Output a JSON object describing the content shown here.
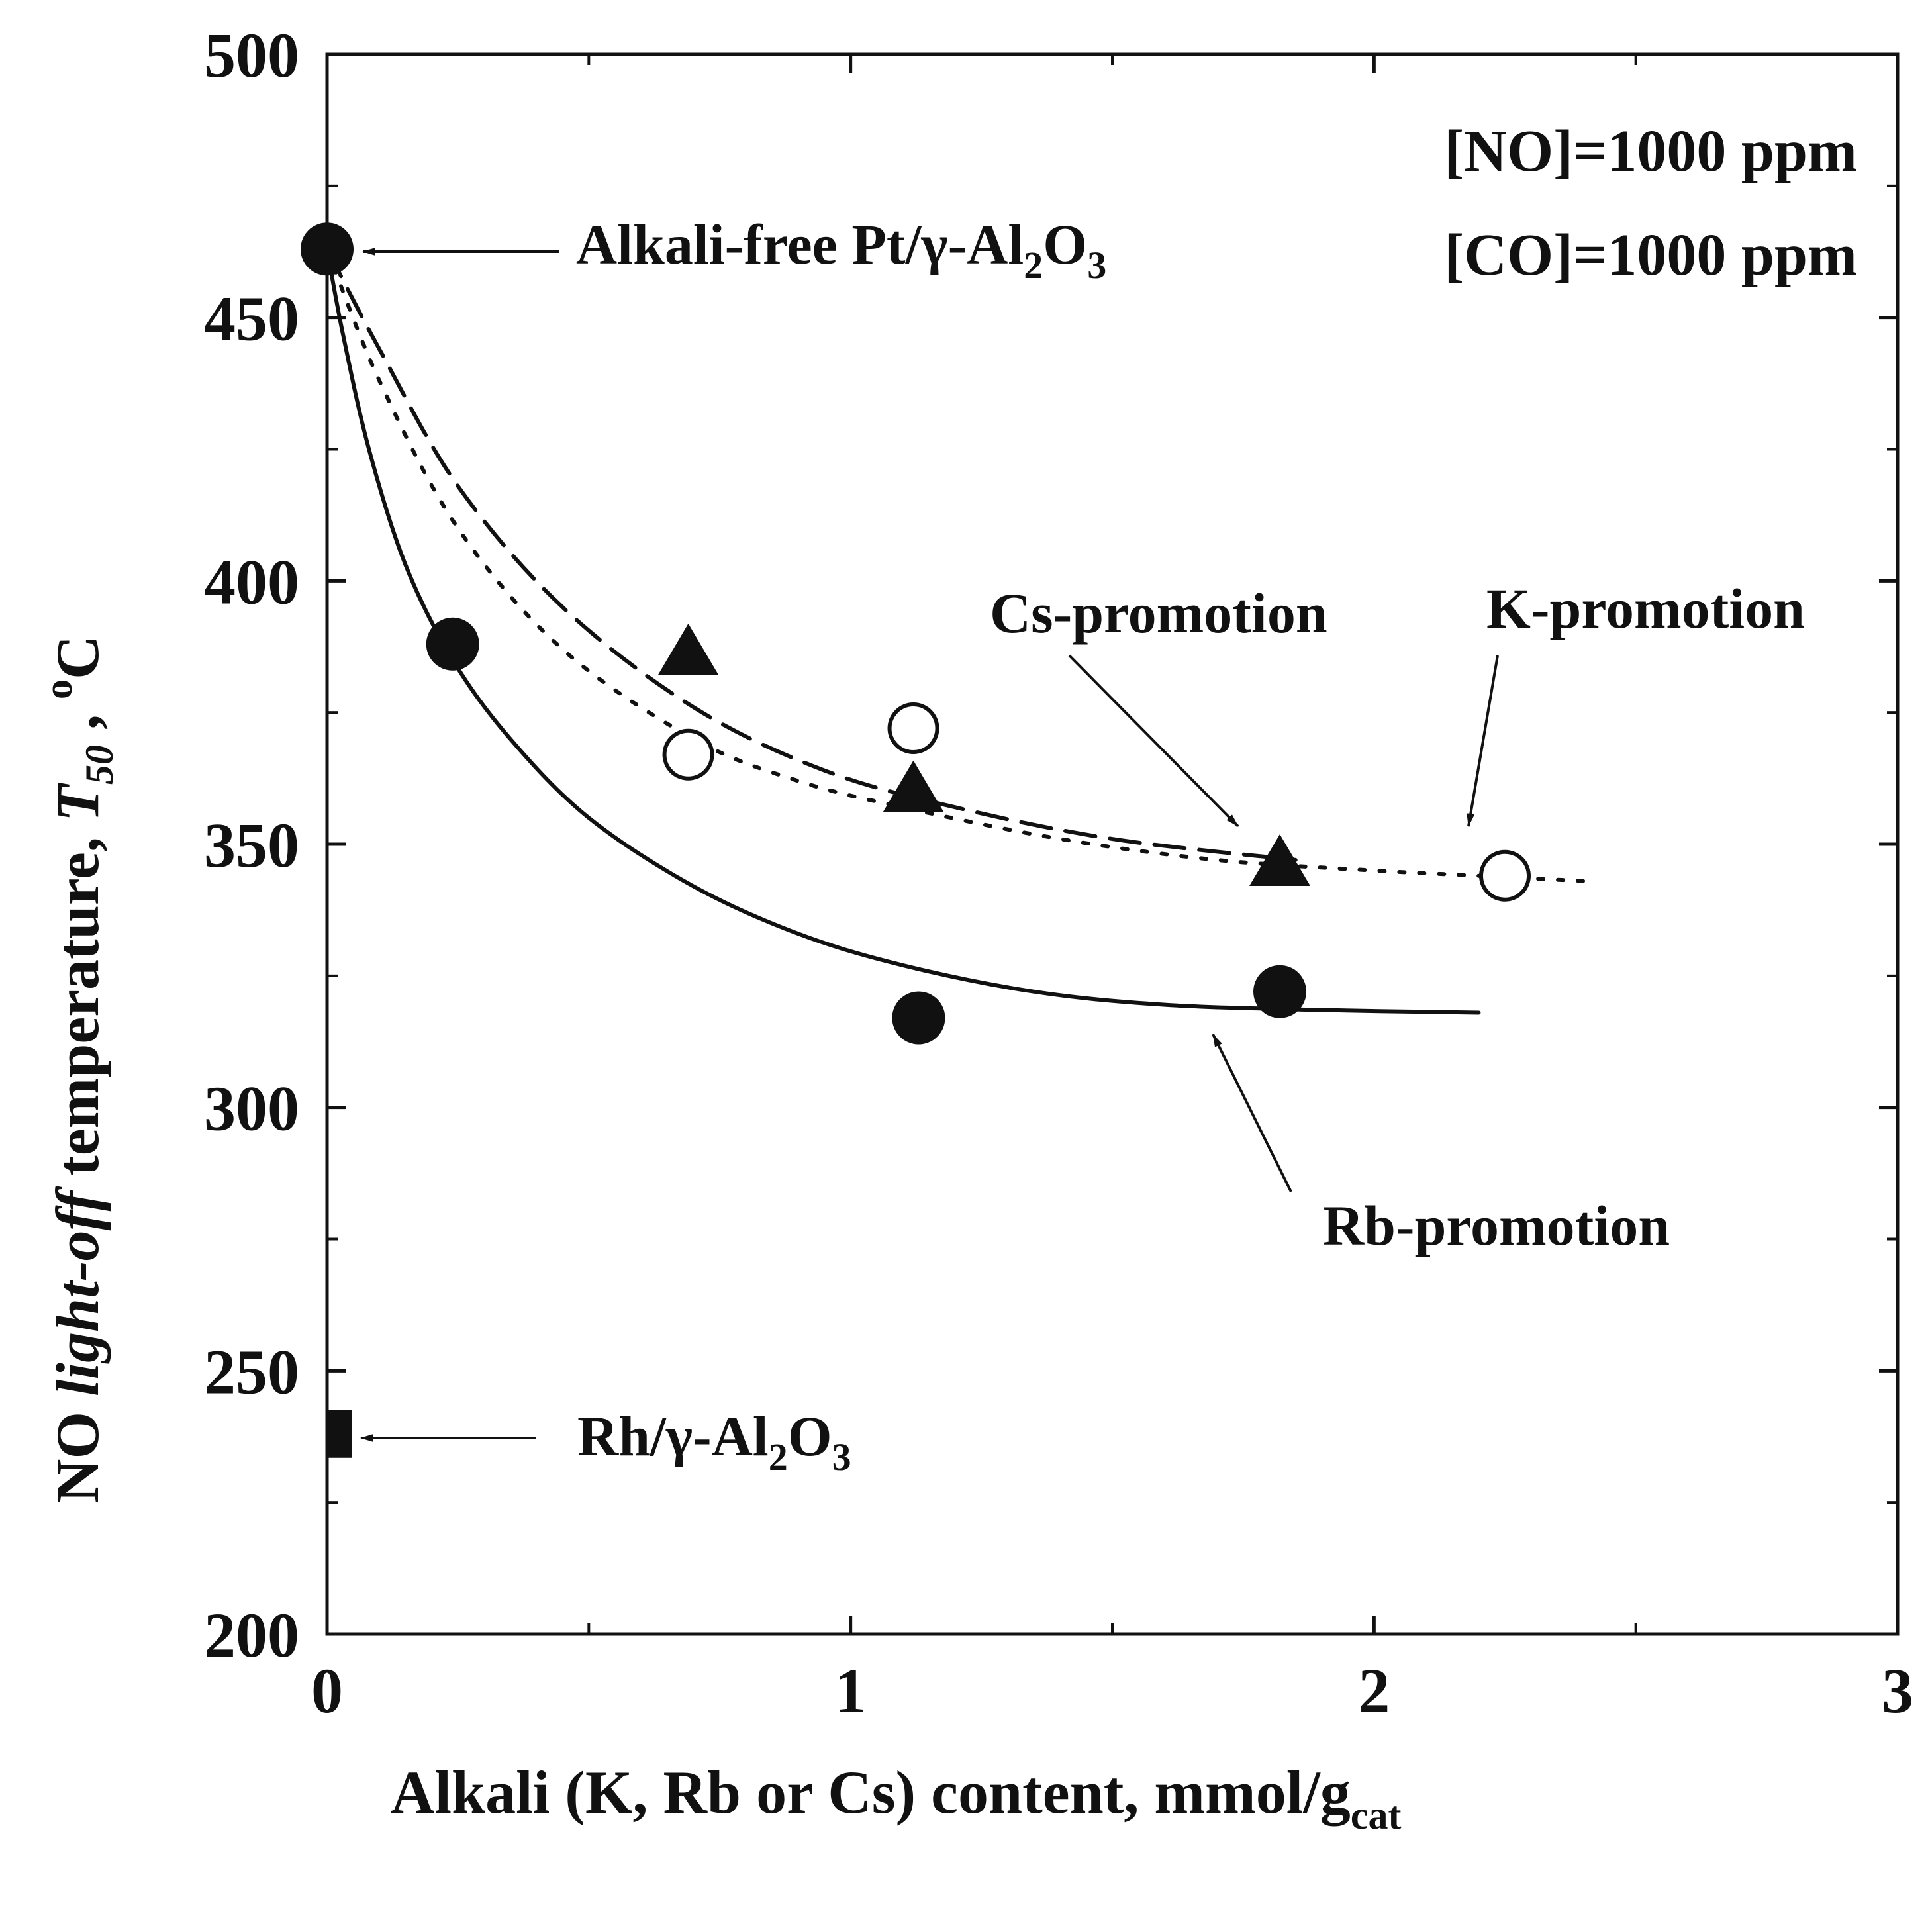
{
  "chart_data": {
    "type": "scatter",
    "title": "",
    "xlabel": {
      "pre": "Alkali (K, Rb or Cs) content, mmol/g",
      "sub": "cat"
    },
    "ylabel": {
      "pre": "NO ",
      "italic": "light-off",
      "mid": " temperature, ",
      "T": "T",
      "Tsub": "50",
      "post": " , ",
      "sup": "o",
      "unit": "C"
    },
    "xlim": [
      0,
      3
    ],
    "ylim": [
      200,
      500
    ],
    "x_ticks": [
      0,
      1,
      2,
      3
    ],
    "y_ticks": [
      200,
      250,
      300,
      350,
      400,
      450,
      500
    ],
    "x_minor_step": 0.5,
    "y_minor_step": 25,
    "grid": false,
    "conditions": [
      "[NO]=1000 ppm",
      "[CO]=1000 ppm"
    ],
    "series": [
      {
        "name": "K-promotion",
        "marker": "open-circle",
        "points": [
          [
            0.0,
            463
          ],
          [
            0.69,
            367
          ],
          [
            1.12,
            372
          ],
          [
            2.25,
            344
          ]
        ],
        "fit": [
          [
            0.0,
            463
          ],
          [
            0.1,
            438
          ],
          [
            0.25,
            410
          ],
          [
            0.45,
            387
          ],
          [
            0.7,
            370
          ],
          [
            0.9,
            362
          ],
          [
            1.1,
            357
          ],
          [
            1.4,
            351
          ],
          [
            1.7,
            347
          ],
          [
            2.0,
            345
          ],
          [
            2.2,
            344
          ],
          [
            2.4,
            343
          ]
        ]
      },
      {
        "name": "Rb-promotion",
        "marker": "filled-circle",
        "points": [
          [
            0.0,
            463
          ],
          [
            0.24,
            388
          ],
          [
            1.13,
            317
          ],
          [
            1.82,
            322
          ]
        ],
        "fit": [
          [
            0.0,
            463
          ],
          [
            0.03,
            447
          ],
          [
            0.08,
            425
          ],
          [
            0.15,
            403
          ],
          [
            0.24,
            385
          ],
          [
            0.35,
            370
          ],
          [
            0.5,
            355
          ],
          [
            0.7,
            342
          ],
          [
            0.9,
            333
          ],
          [
            1.1,
            327
          ],
          [
            1.35,
            322
          ],
          [
            1.6,
            319.5
          ],
          [
            1.9,
            318.5
          ],
          [
            2.2,
            318
          ]
        ]
      },
      {
        "name": "Cs-promotion",
        "marker": "filled-triangle",
        "points": [
          [
            0.0,
            463
          ],
          [
            0.69,
            386
          ],
          [
            1.12,
            360
          ],
          [
            1.82,
            346
          ]
        ],
        "fit": [
          [
            0.0,
            463
          ],
          [
            0.1,
            444
          ],
          [
            0.25,
            418
          ],
          [
            0.45,
            395
          ],
          [
            0.7,
            376
          ],
          [
            0.95,
            364
          ],
          [
            1.2,
            357
          ],
          [
            1.5,
            351
          ],
          [
            1.85,
            347
          ]
        ]
      },
      {
        "name": "Rh/γ-Al2O3",
        "marker": "filled-square",
        "points": [
          [
            0.0,
            238
          ]
        ]
      }
    ],
    "annotations": [
      {
        "id": "alkali-free",
        "text": "Alkali-free Pt/γ-Al",
        "sub1": "2",
        "mid": "O",
        "sub2": "3"
      },
      {
        "id": "rh",
        "text": "Rh/γ-Al",
        "sub1": "2",
        "mid": "O",
        "sub2": "3"
      },
      {
        "id": "cs",
        "text": "Cs-promotion"
      },
      {
        "id": "k",
        "text": "K-promotion"
      },
      {
        "id": "rb",
        "text": "Rb-promotion"
      }
    ]
  }
}
